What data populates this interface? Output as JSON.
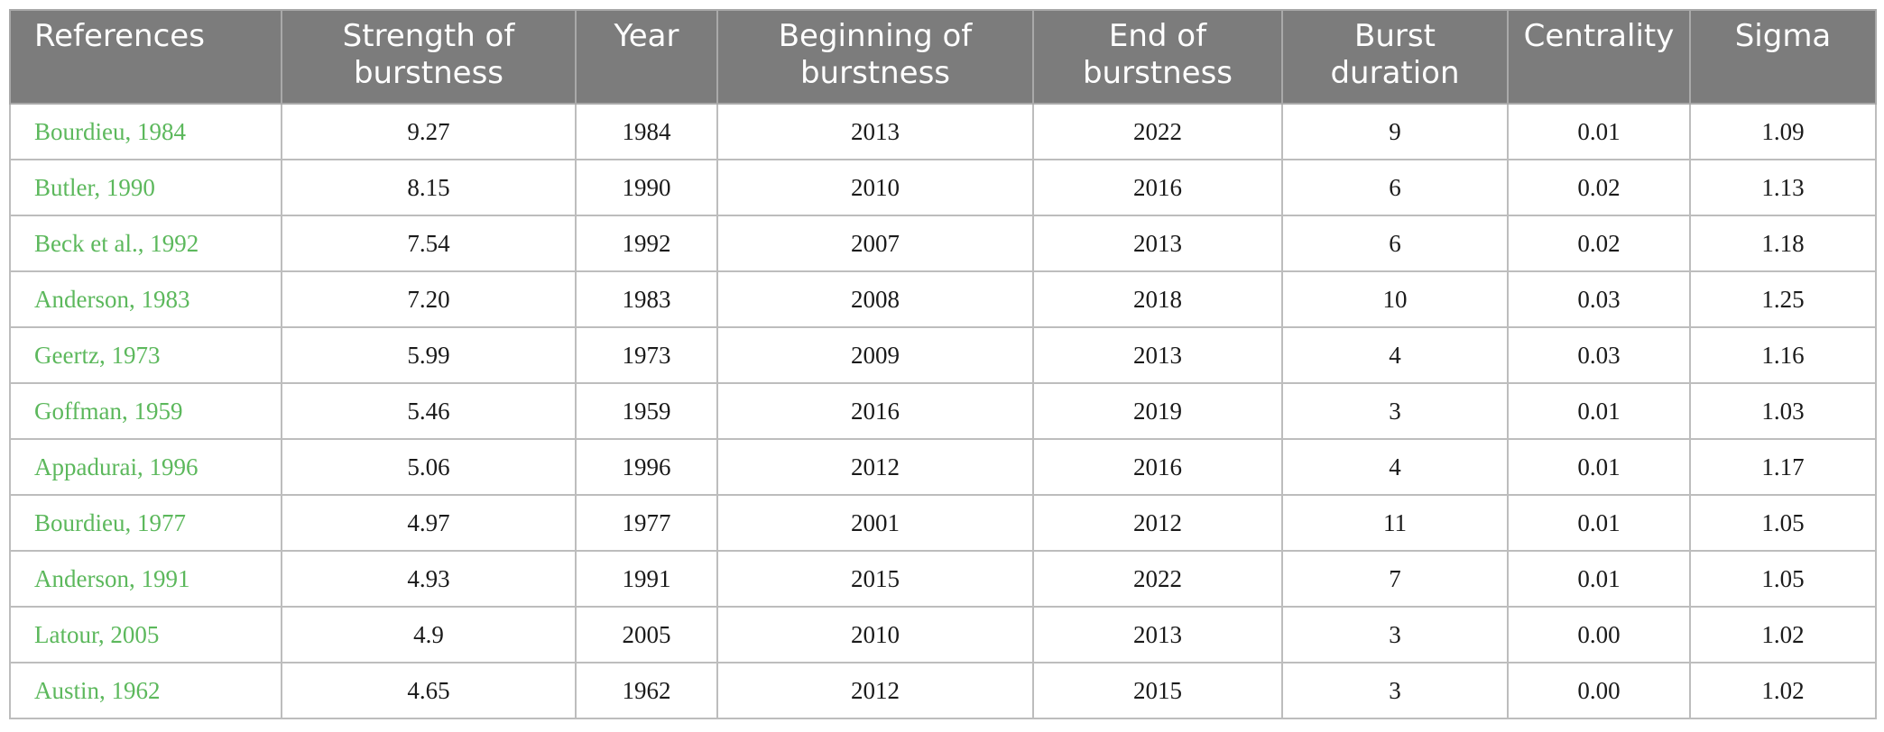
{
  "table": {
    "headers": [
      "References",
      "Strength of burstness",
      "Year",
      "Beginning of burstness",
      "End of burstness",
      "Burst duration",
      "Centrality",
      "Sigma"
    ],
    "rows": [
      [
        "Bourdieu, 1984",
        "9.27",
        "1984",
        "2013",
        "2022",
        "9",
        "0.01",
        "1.09"
      ],
      [
        "Butler, 1990",
        "8.15",
        "1990",
        "2010",
        "2016",
        "6",
        "0.02",
        "1.13"
      ],
      [
        "Beck et al., 1992",
        "7.54",
        "1992",
        "2007",
        "2013",
        "6",
        "0.02",
        "1.18"
      ],
      [
        "Anderson, 1983",
        "7.20",
        "1983",
        "2008",
        "2018",
        "10",
        "0.03",
        "1.25"
      ],
      [
        "Geertz, 1973",
        "5.99",
        "1973",
        "2009",
        "2013",
        "4",
        "0.03",
        "1.16"
      ],
      [
        "Goffman, 1959",
        "5.46",
        "1959",
        "2016",
        "2019",
        "3",
        "0.01",
        "1.03"
      ],
      [
        "Appadurai, 1996",
        "5.06",
        "1996",
        "2012",
        "2016",
        "4",
        "0.01",
        "1.17"
      ],
      [
        "Bourdieu, 1977",
        "4.97",
        "1977",
        "2001",
        "2012",
        "11",
        "0.01",
        "1.05"
      ],
      [
        "Anderson, 1991",
        "4.93",
        "1991",
        "2015",
        "2022",
        "7",
        "0.01",
        "1.05"
      ],
      [
        "Latour, 2005",
        "4.9",
        "2005",
        "2010",
        "2013",
        "3",
        "0.00",
        "1.02"
      ],
      [
        "Austin, 1962",
        "4.65",
        "1962",
        "2012",
        "2015",
        "3",
        "0.00",
        "1.02"
      ]
    ]
  },
  "colors": {
    "header_bg": "#7c7c7c",
    "header_text": "#ffffff",
    "reference_link": "#5cb85c",
    "grid_line": "#bdbdbd"
  }
}
